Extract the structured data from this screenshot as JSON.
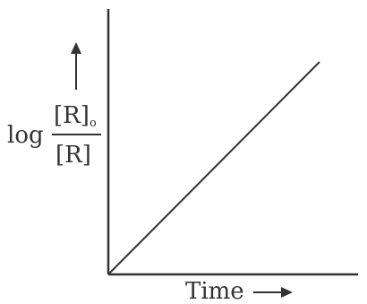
{
  "chart_data": {
    "type": "line",
    "title": "",
    "xlabel": "Time",
    "ylabel": {
      "prefix": "log",
      "numerator": "[R]",
      "numerator_subscript": "o",
      "denominator": "[R]"
    },
    "x": [
      0,
      1
    ],
    "series": [
      {
        "values": [
          0,
          1
        ]
      }
    ],
    "xlim": [
      0,
      1.0
    ],
    "ylim": [
      0,
      1.2
    ],
    "grid": false,
    "legend": "none",
    "colors": {
      "axis": "#333333",
      "line": "#333333",
      "text": "#333333"
    }
  }
}
